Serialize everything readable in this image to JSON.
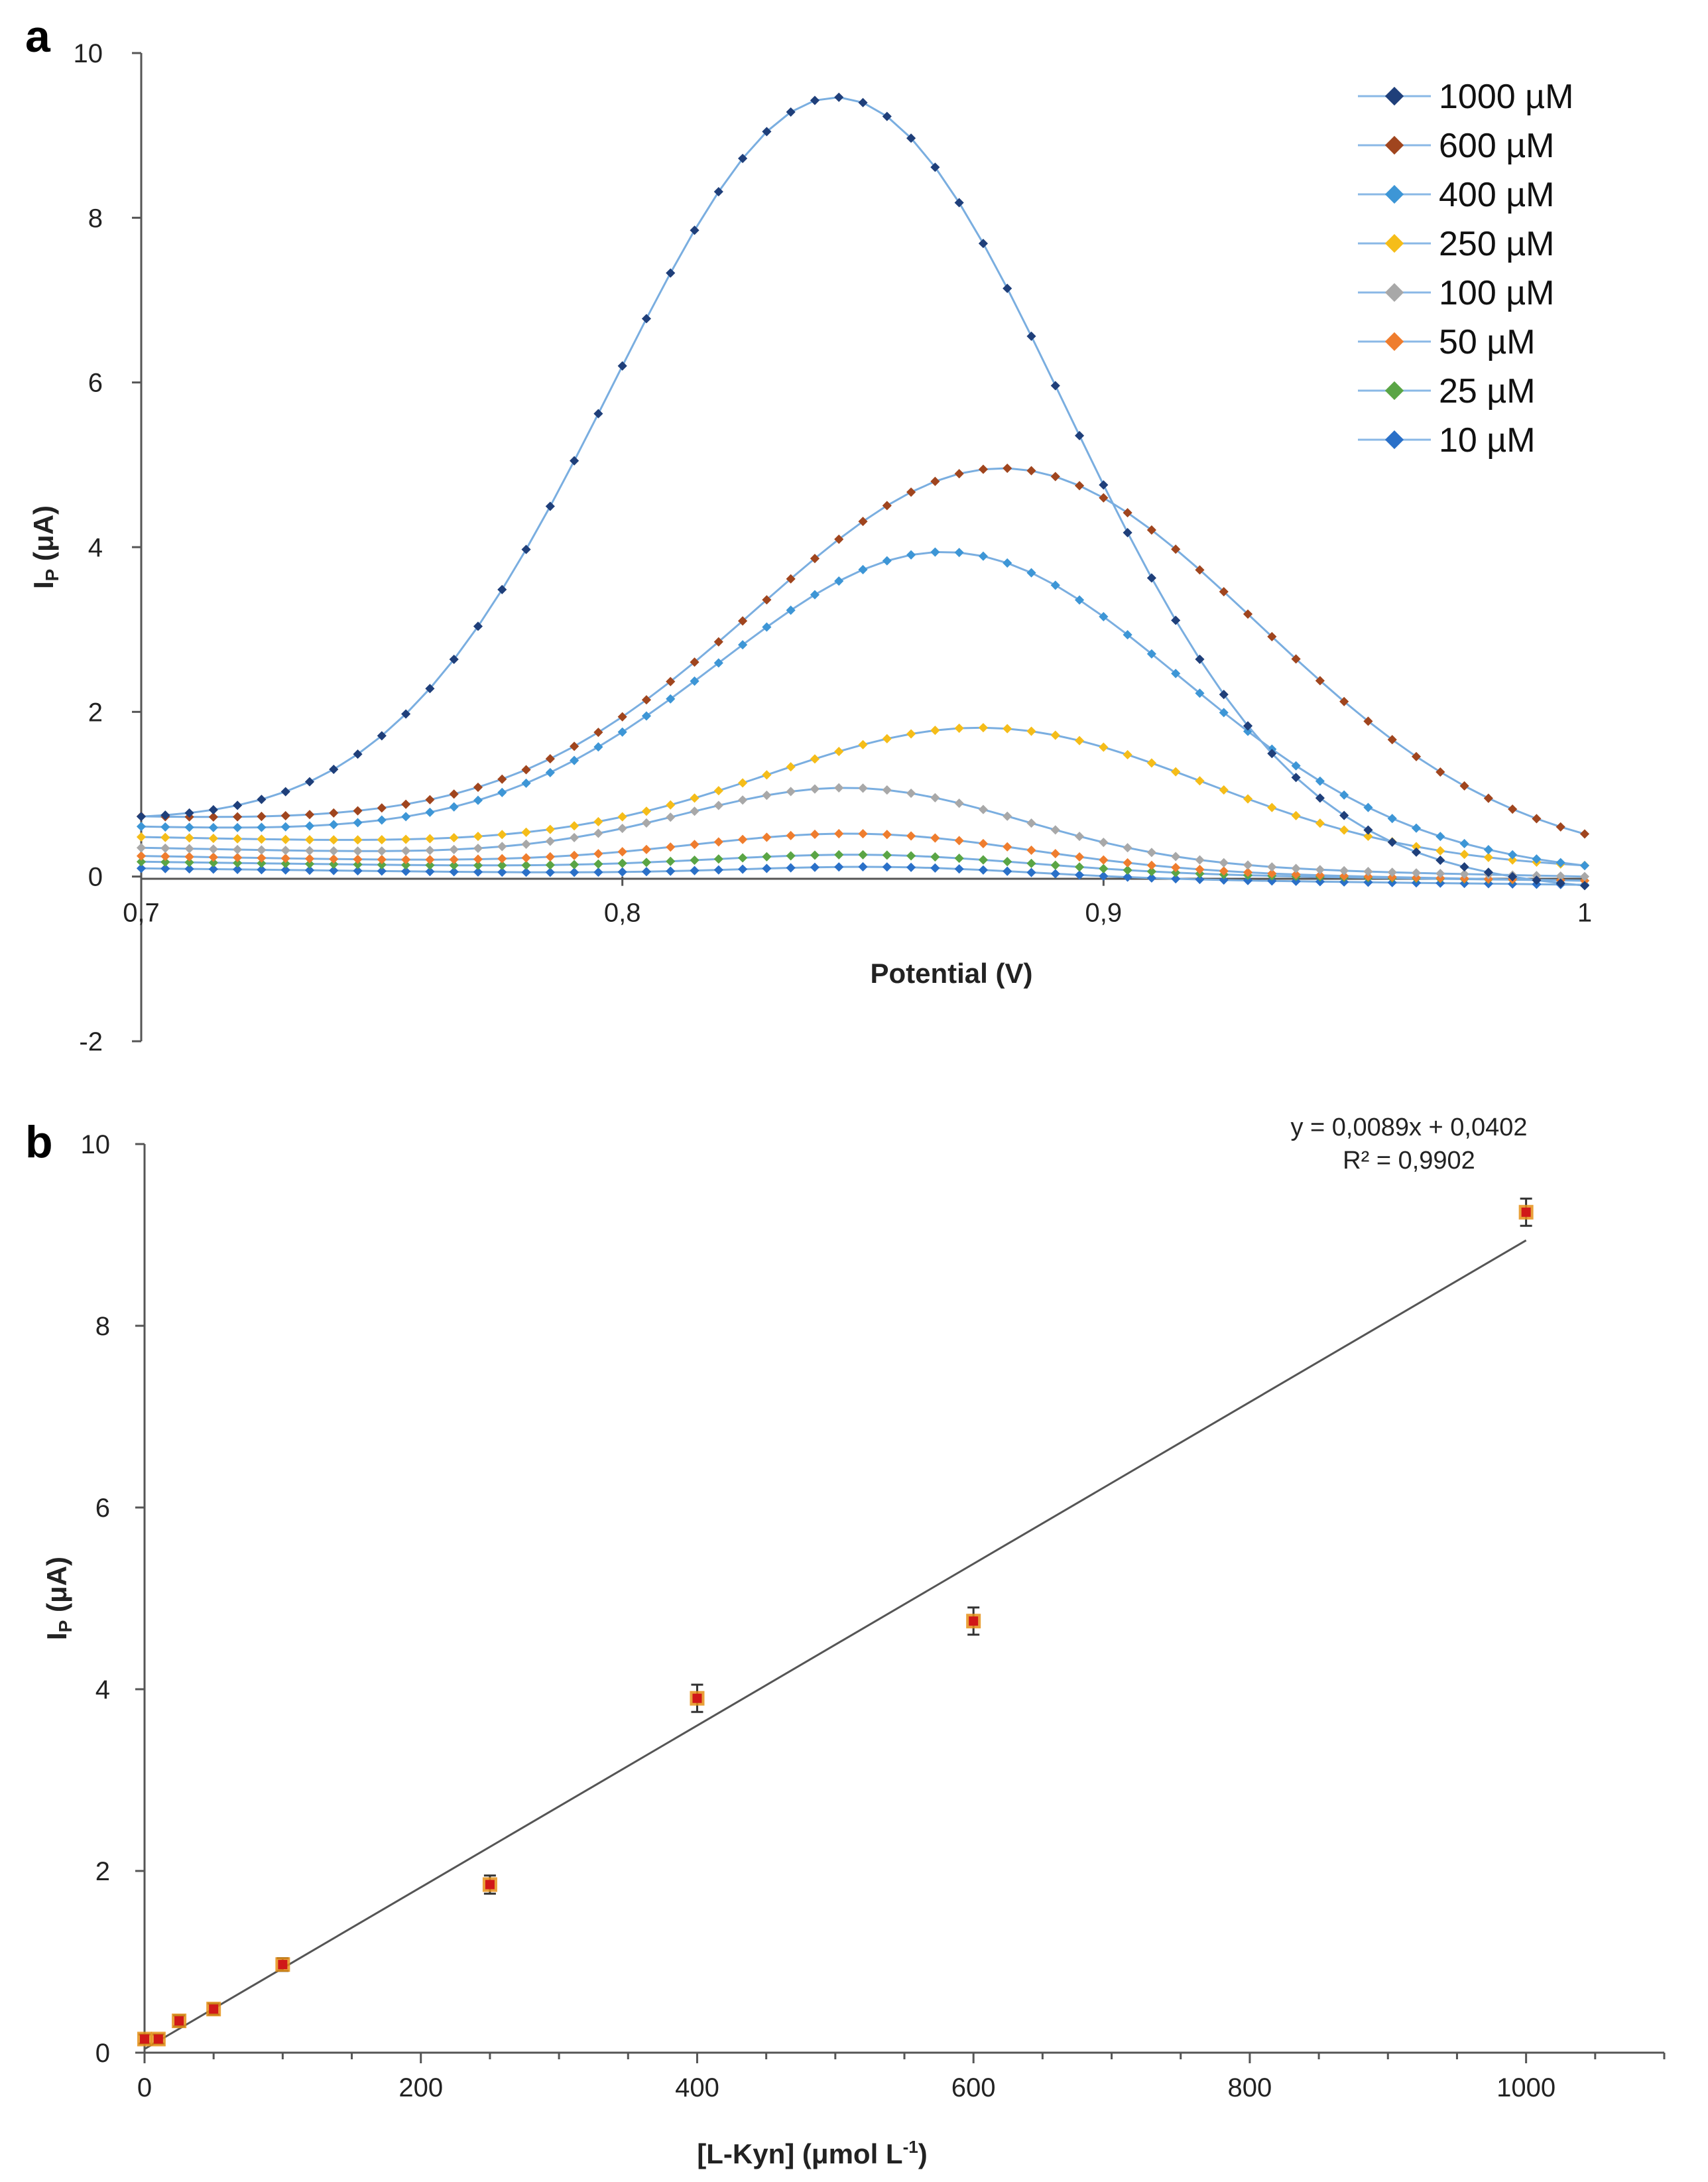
{
  "chart_data": [
    {
      "type": "line",
      "panel_label": "a",
      "xlabel": "Potential (V)",
      "ylabel": "IP (μA)",
      "ylabel_main": "I",
      "ylabel_sub": "P",
      "ylabel_rest": " (μA)",
      "xlim": [
        0.7,
        1.0
      ],
      "ylim": [
        -2,
        10
      ],
      "x_ticks": [
        0.7,
        0.8,
        0.9,
        1.0
      ],
      "x_tick_labels": [
        "0,7",
        "0,8",
        "0,9",
        "1"
      ],
      "y_ticks": [
        -2,
        0,
        2,
        4,
        6,
        8,
        10
      ],
      "y_tick_labels": [
        "-2",
        "0",
        "2",
        "4",
        "6",
        "8",
        "10"
      ],
      "grid": false,
      "legend_position": "top-right",
      "series": [
        {
          "name": "1000 µM",
          "color": "#1f3f7a",
          "baseline_start": 0.65,
          "baseline_end": -0.15,
          "peak": 9.2,
          "center": 0.845,
          "width": 0.047
        },
        {
          "name": "600 µM",
          "color": "#a0451e",
          "baseline_start": 0.72,
          "baseline_end": 0.2,
          "peak": 4.55,
          "center": 0.88,
          "width": 0.052
        },
        {
          "name": "400 µM",
          "color": "#3d96d6",
          "baseline_start": 0.6,
          "baseline_end": 0.05,
          "peak": 3.65,
          "center": 0.868,
          "width": 0.048
        },
        {
          "name": "250 µM",
          "color": "#f5bd19",
          "baseline_start": 0.48,
          "baseline_end": 0.1,
          "peak": 1.55,
          "center": 0.876,
          "width": 0.045
        },
        {
          "name": "100 µM",
          "color": "#a8a8a8",
          "baseline_start": 0.35,
          "baseline_end": 0.0,
          "peak": 0.9,
          "center": 0.848,
          "width": 0.035
        },
        {
          "name": "50 µM",
          "color": "#ef7d2e",
          "baseline_start": 0.25,
          "baseline_end": -0.05,
          "peak": 0.42,
          "center": 0.85,
          "width": 0.035
        },
        {
          "name": "25 µM",
          "color": "#5aa545",
          "baseline_start": 0.18,
          "baseline_end": -0.05,
          "peak": 0.2,
          "center": 0.852,
          "width": 0.033
        },
        {
          "name": "10 µM",
          "color": "#2a70c8",
          "baseline_start": 0.1,
          "baseline_end": -0.1,
          "peak": 0.12,
          "center": 0.855,
          "width": 0.03
        }
      ]
    },
    {
      "type": "scatter",
      "panel_label": "b",
      "xlabel": "[L-Kyn]  (μmol L",
      "xlabel_sup": "-1",
      "xlabel_end": ")",
      "ylabel": "IP (μA)",
      "ylabel_main": "I",
      "ylabel_sub": "P",
      "ylabel_rest": " (μA)",
      "xlim": [
        0,
        1100
      ],
      "ylim": [
        0,
        10
      ],
      "x_ticks": [
        0,
        200,
        400,
        600,
        800,
        1000
      ],
      "x_tick_labels": [
        "0",
        "200",
        "400",
        "600",
        "800",
        "1000"
      ],
      "y_ticks": [
        0,
        2,
        4,
        6,
        8,
        10
      ],
      "y_tick_labels": [
        "0",
        "2",
        "4",
        "6",
        "8",
        "10"
      ],
      "grid": false,
      "points": [
        {
          "x": 0,
          "y": 0.15,
          "err": 0.05
        },
        {
          "x": 10,
          "y": 0.15,
          "err": 0.05
        },
        {
          "x": 25,
          "y": 0.35,
          "err": 0.06
        },
        {
          "x": 50,
          "y": 0.48,
          "err": 0.06
        },
        {
          "x": 100,
          "y": 0.97,
          "err": 0.07
        },
        {
          "x": 250,
          "y": 1.85,
          "err": 0.1
        },
        {
          "x": 400,
          "y": 3.9,
          "err": 0.15
        },
        {
          "x": 600,
          "y": 4.75,
          "err": 0.15
        },
        {
          "x": 1000,
          "y": 9.25,
          "err": 0.15
        }
      ],
      "marker_color": "#d01818",
      "marker_outline": "#e59018",
      "fit": {
        "slope": 0.0089,
        "intercept": 0.0402,
        "x_range": [
          0,
          1000
        ]
      },
      "equation": "y = 0,0089x + 0,0402",
      "r_squared": "R² = 0,9902"
    }
  ]
}
